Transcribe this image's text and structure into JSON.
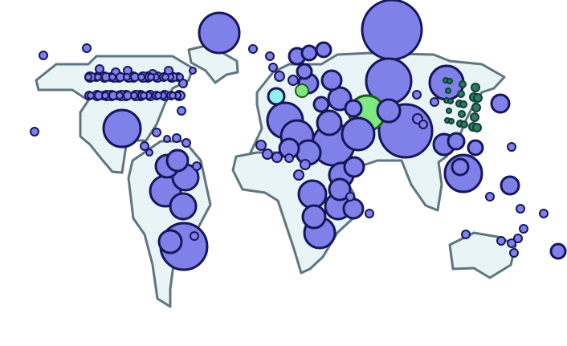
{
  "map": {
    "colors": {
      "land": "#e8f4f5",
      "border": "#5f7580",
      "bubble": "#8081e8",
      "bubble_stroke": "#16165c",
      "highlight": "#80e880",
      "highlight_stroke": "#1a5c1a",
      "cyan": "#90f0ea",
      "teal": "#2f7a64",
      "teal_stroke": "#0f3d33"
    }
  }
}
